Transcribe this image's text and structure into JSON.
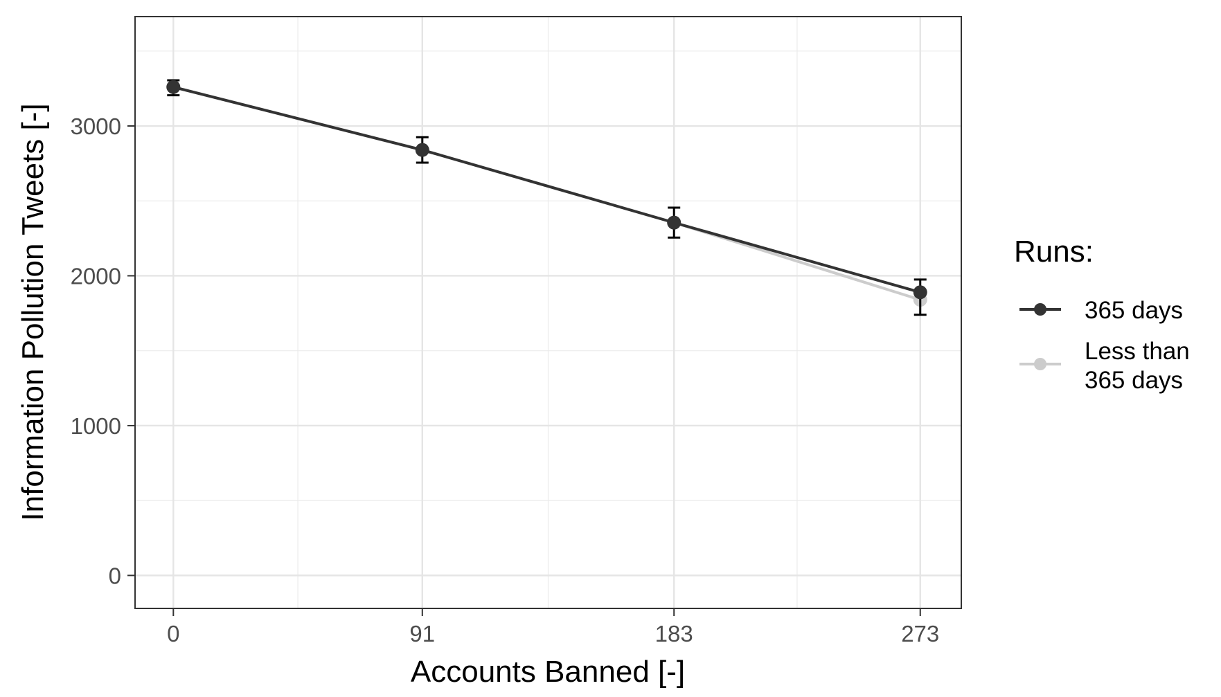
{
  "chart_data": {
    "type": "line",
    "title": "",
    "xlabel": "Accounts Banned [-]",
    "ylabel": "Information Pollution Tweets [-]",
    "x": [
      0,
      91,
      183,
      273
    ],
    "x_tick_labels": [
      "0",
      "91",
      "183",
      "273"
    ],
    "xlim": [
      -14,
      288
    ],
    "ylim": [
      -220,
      3730
    ],
    "y_ticks": [
      0,
      1000,
      2000,
      3000
    ],
    "y_tick_labels": [
      "0",
      "1000",
      "2000",
      "3000"
    ],
    "grid": true,
    "legend": {
      "title": "Runs:",
      "position": "right",
      "entries": [
        "365 days",
        "Less than\n365 days"
      ]
    },
    "series": [
      {
        "name": "365 days",
        "color": "#333333",
        "values": [
          3260,
          2840,
          2355,
          1890
        ],
        "error_low": [
          3205,
          2755,
          2255,
          1740
        ],
        "error_high": [
          3305,
          2925,
          2455,
          1975
        ]
      },
      {
        "name": "Less than\n365 days",
        "color": "#cccccc",
        "values": [
          3260,
          2840,
          2355,
          1840
        ]
      }
    ]
  }
}
